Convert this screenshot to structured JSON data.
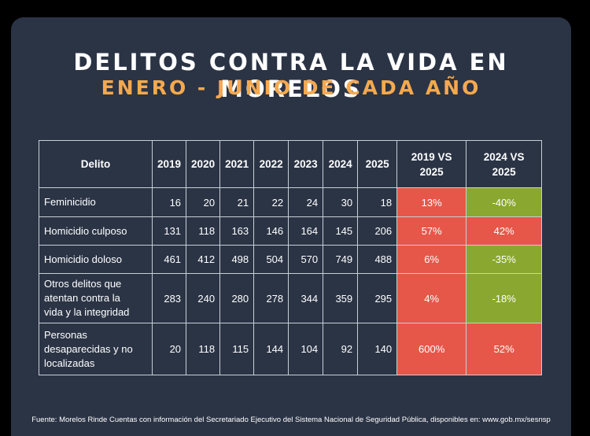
{
  "title": "DELITOS CONTRA LA VIDA EN MORELOS",
  "subtitle": "ENERO - JUNIO DE CADA AÑO",
  "colors": {
    "background": "#2b3445",
    "accent": "#f5a94e",
    "increase": "#e6574a",
    "decrease": "#8aa82f"
  },
  "table": {
    "headers": {
      "crime": "Delito",
      "years": [
        "2019",
        "2020",
        "2021",
        "2022",
        "2023",
        "2024",
        "2025"
      ],
      "cmp1_l1": "2019 VS",
      "cmp1_l2": "2025",
      "cmp2_l1": "2024 VS",
      "cmp2_l2": "2025"
    },
    "rows": [
      {
        "crime": [
          "Feminicidio"
        ],
        "values": [
          "16",
          "20",
          "21",
          "22",
          "24",
          "30",
          "18"
        ],
        "cmp1": "13%",
        "cmp2": "-40%"
      },
      {
        "crime": [
          "Homicidio culposo"
        ],
        "values": [
          "131",
          "118",
          "163",
          "146",
          "164",
          "145",
          "206"
        ],
        "cmp1": "57%",
        "cmp2": "42%"
      },
      {
        "crime": [
          "Homicidio doloso"
        ],
        "values": [
          "461",
          "412",
          "498",
          "504",
          "570",
          "749",
          "488"
        ],
        "cmp1": "6%",
        "cmp2": "-35%"
      },
      {
        "crime": [
          "Otros delitos que",
          "atentan contra la",
          "vida y la integridad"
        ],
        "values": [
          "283",
          "240",
          "280",
          "278",
          "344",
          "359",
          "295"
        ],
        "cmp1": "4%",
        "cmp2": "-18%"
      },
      {
        "crime": [
          "Personas",
          "desaparecidas y no",
          "localizadas"
        ],
        "values": [
          "20",
          "118",
          "115",
          "144",
          "104",
          "92",
          "140"
        ],
        "cmp1": "600%",
        "cmp2": "52%"
      }
    ]
  },
  "source": "Fuente: Morelos Rinde Cuentas con información del Secretariado Ejecutivo del Sistema Nacional de Seguridad Pública, disponibles en: www.gob.mx/sesnsp"
}
